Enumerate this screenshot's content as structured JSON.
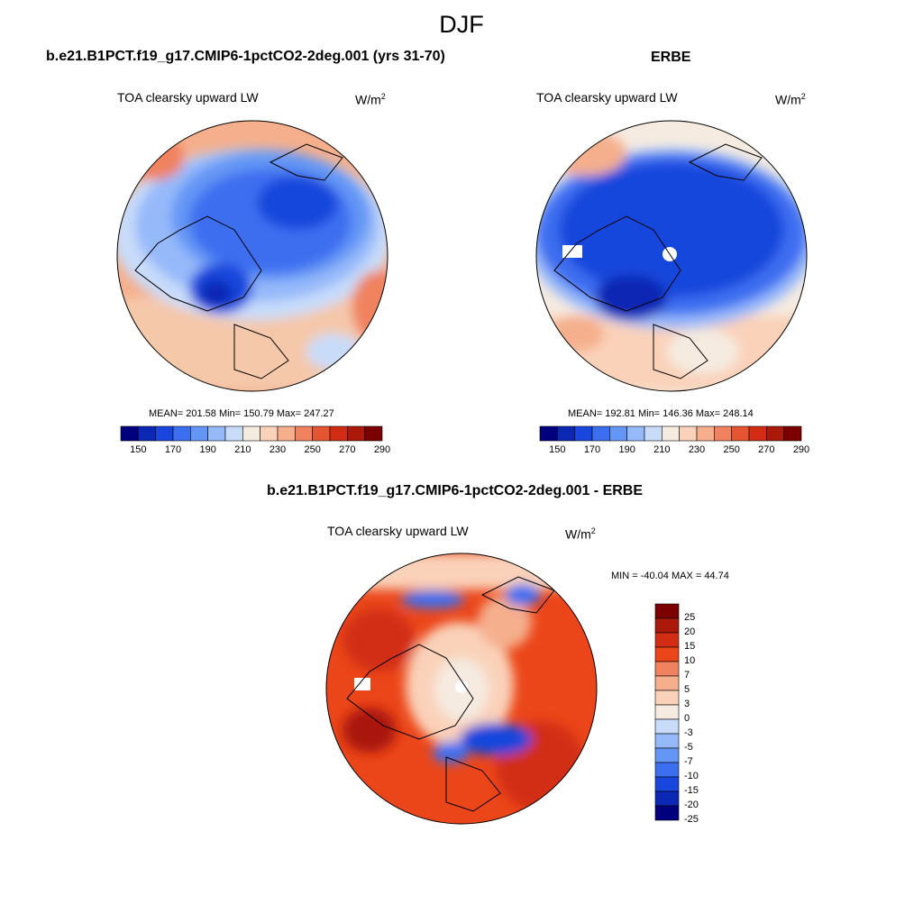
{
  "title": "DJF",
  "panels": [
    {
      "case_title": "b.e21.B1PCT.f19_g17.CMIP6-1pctCO2-2deg.001 (yrs 31-70)",
      "variable": "TOA clearsky upward LW",
      "units_base": "W/m",
      "units_exp": "2",
      "stats": "MEAN= 201.58  Min= 150.79  Max= 247.27"
    },
    {
      "case_title": "ERBE",
      "variable": "TOA clearsky upward LW",
      "units_base": "W/m",
      "units_exp": "2",
      "stats": "MEAN= 192.81  Min= 146.36  Max= 248.14"
    }
  ],
  "diff_panel": {
    "case_title": "b.e21.B1PCT.f19_g17.CMIP6-1pctCO2-2deg.001 - ERBE",
    "variable": "TOA clearsky upward LW",
    "units_base": "W/m",
    "units_exp": "2",
    "stats": "MIN = -40.04 MAX =  44.74"
  },
  "colorbar_abs": {
    "colors": [
      "#00007f",
      "#0a28b4",
      "#1946dc",
      "#3c6ef0",
      "#6496f5",
      "#96b9fa",
      "#c8dcfa",
      "#f5ebe1",
      "#fad2b9",
      "#f5af8c",
      "#f0825f",
      "#e65532",
      "#d22d14",
      "#aa190a",
      "#7d0000"
    ],
    "tick_labels": [
      "150",
      "170",
      "190",
      "210",
      "230",
      "250",
      "270",
      "290"
    ]
  },
  "colorbar_diff": {
    "colors": [
      "#7d0000",
      "#aa190a",
      "#d22d14",
      "#eb4619",
      "#f0825f",
      "#f5af8c",
      "#fad2b9",
      "#f5ebe1",
      "#c8dcfa",
      "#96b9fa",
      "#6496f5",
      "#3c6ef0",
      "#1946dc",
      "#0a28b4",
      "#00007f"
    ],
    "tick_labels": [
      "25",
      "20",
      "15",
      "10",
      "7",
      "5",
      "3",
      "0",
      "-3",
      "-5",
      "-7",
      "-10",
      "-15",
      "-20",
      "-25"
    ]
  }
}
